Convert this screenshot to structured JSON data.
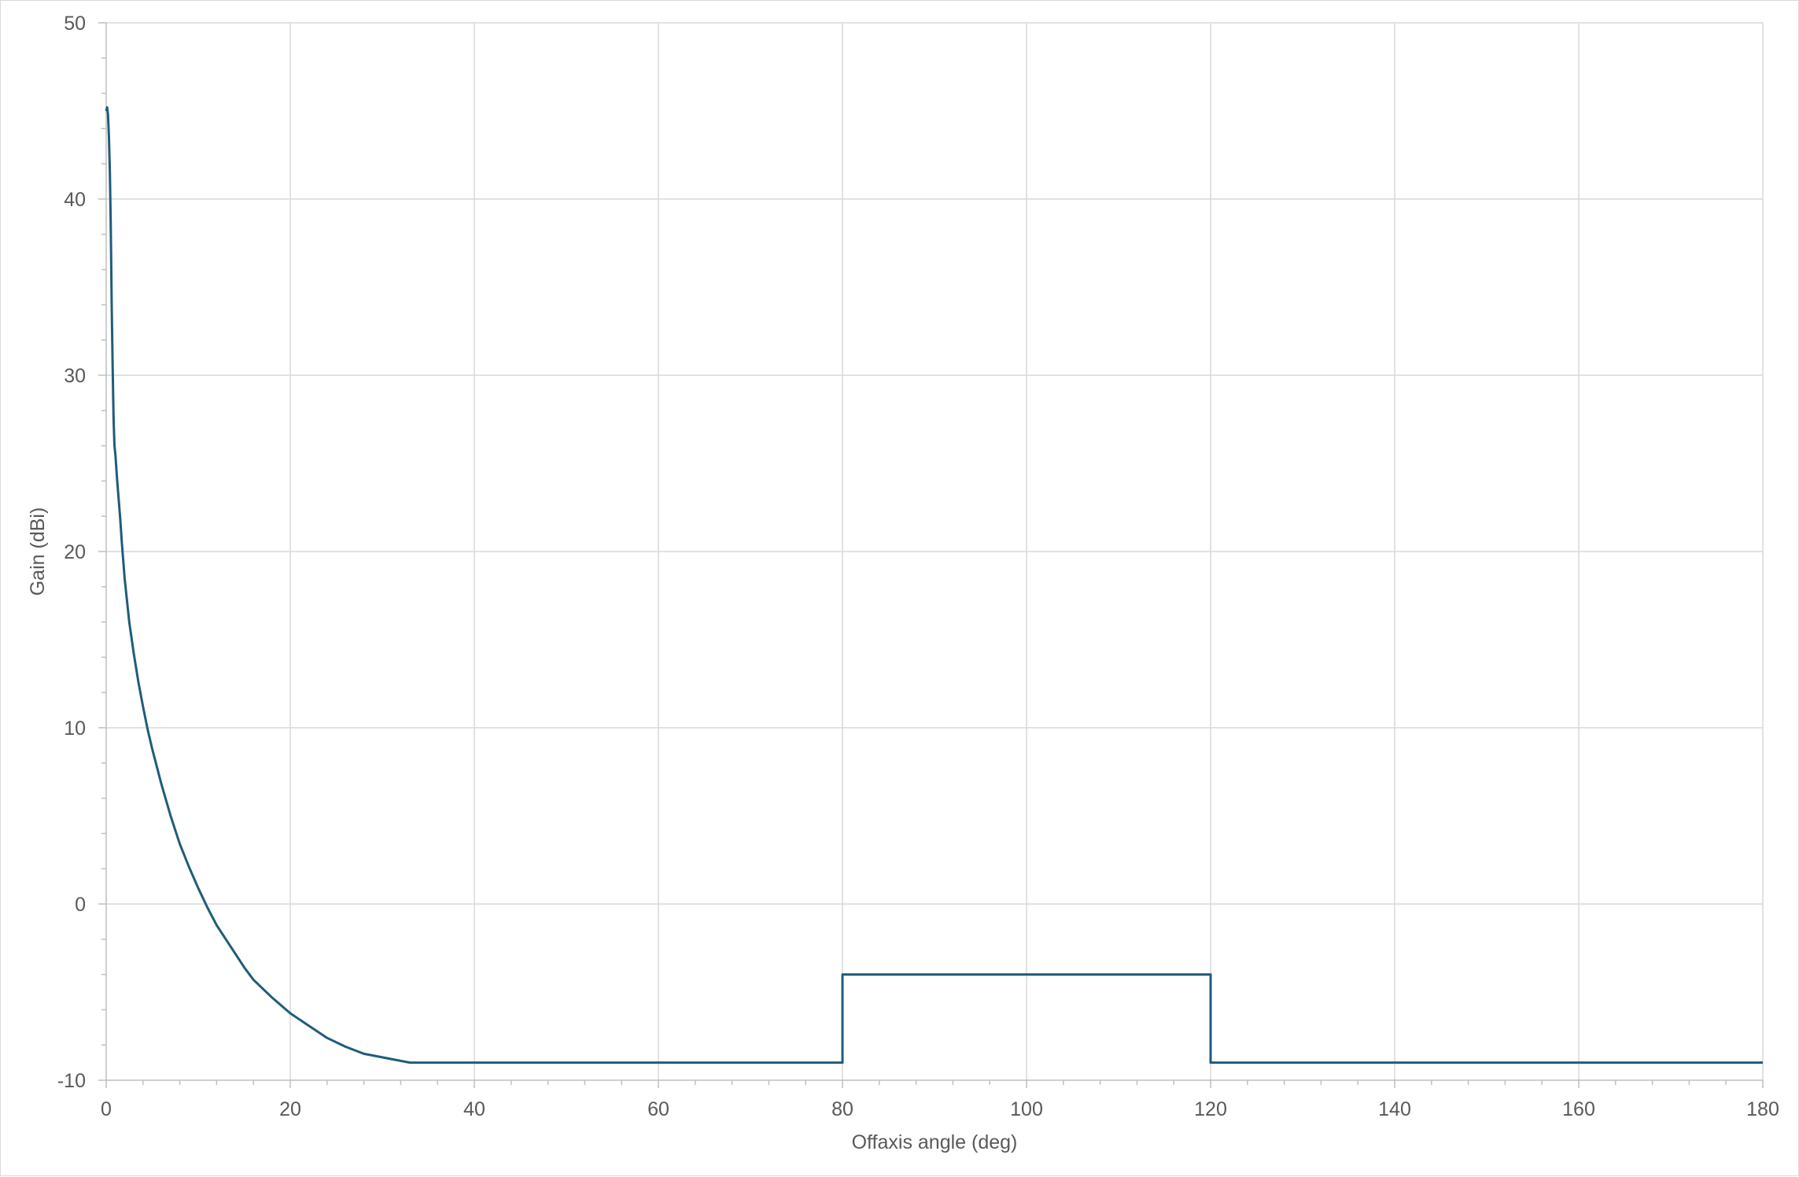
{
  "chart_data": {
    "type": "line",
    "xlabel": "Offaxis angle (deg)",
    "ylabel": "Gain (dBi)",
    "xlim": [
      0,
      180
    ],
    "ylim": [
      -10,
      50
    ],
    "x_ticks": [
      0,
      20,
      40,
      60,
      80,
      100,
      120,
      140,
      160,
      180
    ],
    "y_ticks": [
      -10,
      0,
      10,
      20,
      30,
      40,
      50
    ],
    "x_minor_step": 4,
    "y_minor_step": 2,
    "grid": true,
    "legend": "none",
    "line_color": "#1f5c7a",
    "gridline_color": "#d9d9d9",
    "series": [
      {
        "x": [
          0,
          0.1,
          0.2,
          0.3,
          0.4,
          0.5,
          0.6,
          0.7,
          0.8,
          0.9,
          1.0,
          1.2,
          1.5,
          1.7,
          2.0,
          2.5,
          3.0,
          3.5,
          4.0,
          4.5,
          5.0,
          6.0,
          7.0,
          8.0,
          9.0,
          10.0,
          11.0,
          12.0,
          13.0,
          14.0,
          15.0,
          16.0,
          18.0,
          20.0,
          22.0,
          24.0,
          26.0,
          28.0,
          30.0,
          32.0,
          33.0,
          80.0,
          80.0,
          120.0,
          120.0,
          180.0
        ],
        "y": [
          45.0,
          45.2,
          44.8,
          43.5,
          41.5,
          38.5,
          34.0,
          30.5,
          27.5,
          26.0,
          25.5,
          24.0,
          22.0,
          20.5,
          18.5,
          16.0,
          14.2,
          12.6,
          11.2,
          9.9,
          8.8,
          6.8,
          5.0,
          3.4,
          2.1,
          0.9,
          -0.2,
          -1.2,
          -2.0,
          -2.8,
          -3.6,
          -4.3,
          -5.3,
          -6.2,
          -6.9,
          -7.6,
          -8.1,
          -8.5,
          -8.7,
          -8.9,
          -9.0,
          -9.0,
          -4.0,
          -4.0,
          -9.0,
          -9.0
        ]
      }
    ]
  }
}
